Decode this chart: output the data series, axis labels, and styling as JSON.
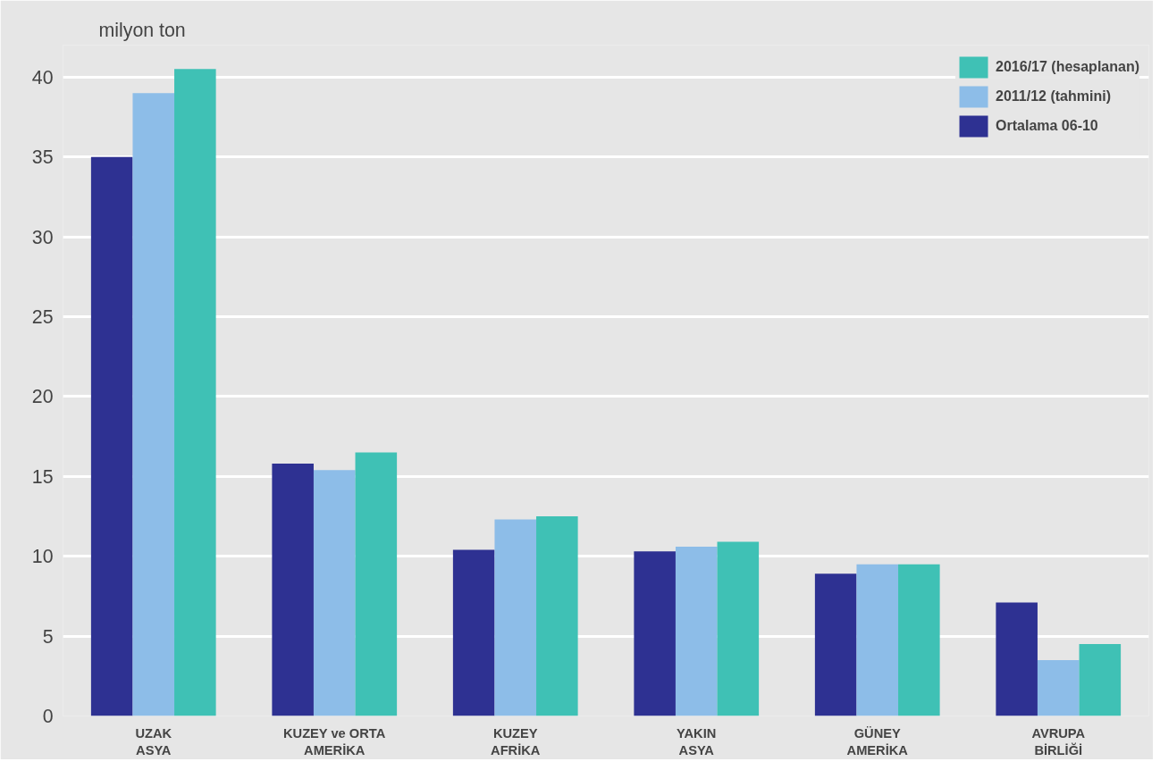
{
  "chart_data": {
    "type": "bar",
    "ylabel": "milyon ton",
    "categories": [
      "UZAK\nASYA",
      "KUZEY ve ORTA\nAMERİKA",
      "KUZEY\nAFRİKA",
      "YAKIN\nASYA",
      "GÜNEY\nAMERİKA",
      "AVRUPA\nBİRLİĞİ"
    ],
    "series": [
      {
        "name": "Ortalama 06-10",
        "color": "#2e3192",
        "values": [
          35,
          15.8,
          10.4,
          10.3,
          8.9,
          7.1
        ]
      },
      {
        "name": "2011/12 (tahmini)",
        "color": "#8dbde8",
        "values": [
          39,
          15.4,
          12.3,
          10.6,
          9.5,
          3.5
        ]
      },
      {
        "name": "2016/17 (hesaplanan)",
        "color": "#3fc1b5",
        "values": [
          40.5,
          16.5,
          12.5,
          10.9,
          9.5,
          4.5
        ]
      }
    ],
    "ylim": [
      0,
      42
    ],
    "yticks": [
      0,
      5,
      10,
      15,
      20,
      25,
      30,
      35,
      40
    ],
    "grid": "y",
    "legend": "top right"
  }
}
